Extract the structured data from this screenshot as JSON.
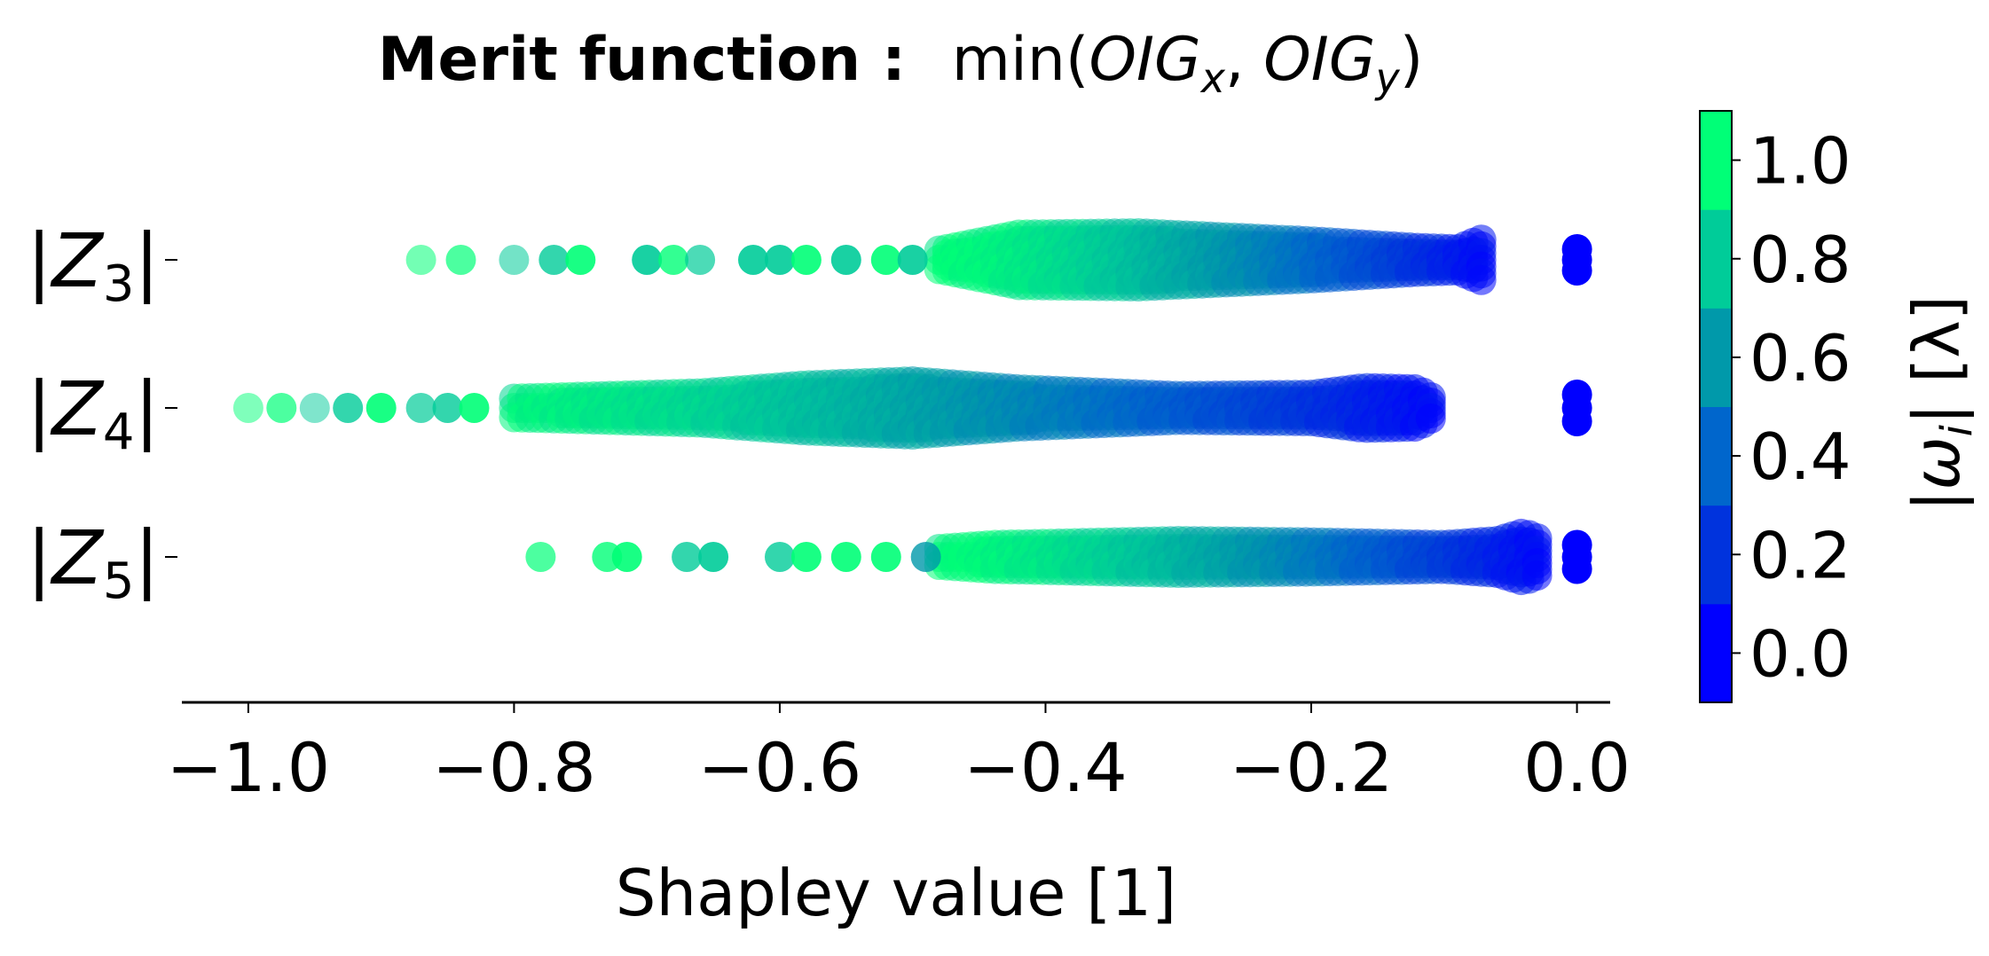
{
  "chart_data": {
    "type": "scatter",
    "subtype": "beeswarm",
    "title": {
      "bold": "Merit function :",
      "func": "min(",
      "t1": "OIG",
      "s1": "x",
      "sep": ", ",
      "t2": "OIG",
      "s2": "y",
      "close": ")"
    },
    "xlabel": "Shapley value [1]",
    "xlim": [
      -1.05,
      0.025
    ],
    "xticks": [
      -1.0,
      -0.8,
      -0.6,
      -0.4,
      -0.2,
      0.0
    ],
    "xtick_labels": [
      "−1.0",
      "−0.8",
      "−0.6",
      "−0.4",
      "−0.2",
      "0.0"
    ],
    "grid": false,
    "features": [
      {
        "label_main": "Z",
        "label_sub": "3",
        "points": [
          {
            "x": -0.87,
            "c": 0.95,
            "o": 0.55
          },
          {
            "x": -0.84,
            "c": 1.0,
            "o": 0.7
          },
          {
            "x": -0.8,
            "c": 0.8,
            "o": 0.55
          },
          {
            "x": -0.77,
            "c": 0.75,
            "o": 0.8
          },
          {
            "x": -0.75,
            "c": 1.0,
            "o": 0.9
          },
          {
            "x": -0.7,
            "c": 0.75,
            "o": 0.9
          },
          {
            "x": -0.68,
            "c": 0.95,
            "o": 0.8
          },
          {
            "x": -0.66,
            "c": 0.8,
            "o": 0.7
          },
          {
            "x": -0.62,
            "c": 0.75,
            "o": 0.9
          },
          {
            "x": -0.6,
            "c": 0.75,
            "o": 0.9
          },
          {
            "x": -0.58,
            "c": 0.95,
            "o": 0.9
          },
          {
            "x": -0.55,
            "c": 0.75,
            "o": 0.9
          },
          {
            "x": -0.52,
            "c": 0.95,
            "o": 0.9
          },
          {
            "x": -0.5,
            "c": 0.8,
            "o": 0.9
          },
          {
            "x": 0.0,
            "y": -0.4,
            "c": 0.05,
            "o": 1.0
          },
          {
            "x": 0.0,
            "y": 0.0,
            "c": 0.05,
            "o": 1.0
          },
          {
            "x": 0.0,
            "y": 0.4,
            "c": 0.05,
            "o": 1.0
          }
        ],
        "bands": [
          {
            "x0": -0.48,
            "x1": -0.07,
            "w0": 0.35,
            "w1": 0.6,
            "profile": [
              [
                -0.48,
                0.35
              ],
              [
                -0.42,
                0.95
              ],
              [
                -0.33,
                1.0
              ],
              [
                -0.2,
                0.7
              ],
              [
                -0.12,
                0.45
              ],
              [
                -0.09,
                0.4
              ],
              [
                -0.06,
                1.0
              ]
            ],
            "c0": 1.0,
            "c1": 0.05
          }
        ]
      },
      {
        "label_main": "Z",
        "label_sub": "4",
        "points": [
          {
            "x": -1.0,
            "c": 1.0,
            "o": 0.5
          },
          {
            "x": -0.975,
            "c": 1.0,
            "o": 0.7
          },
          {
            "x": -0.95,
            "c": 0.8,
            "o": 0.5
          },
          {
            "x": -0.925,
            "c": 0.75,
            "o": 0.8
          },
          {
            "x": -0.9,
            "c": 1.0,
            "o": 0.9
          },
          {
            "x": -0.87,
            "c": 0.8,
            "o": 0.7
          },
          {
            "x": -0.85,
            "c": 0.75,
            "o": 0.8
          },
          {
            "x": -0.83,
            "c": 1.0,
            "o": 0.9
          },
          {
            "x": 0.0,
            "y": -0.5,
            "c": 0.05,
            "o": 1.0
          },
          {
            "x": 0.0,
            "y": 0.0,
            "c": 0.05,
            "o": 1.0
          },
          {
            "x": 0.0,
            "y": 0.5,
            "c": 0.05,
            "o": 1.0
          }
        ],
        "bands": [
          {
            "x0": -0.8,
            "x1": -0.11,
            "profile": [
              [
                -0.8,
                0.35
              ],
              [
                -0.66,
                0.55
              ],
              [
                -0.58,
                0.85
              ],
              [
                -0.5,
                1.0
              ],
              [
                -0.42,
                0.7
              ],
              [
                -0.3,
                0.45
              ],
              [
                -0.2,
                0.5
              ],
              [
                -0.16,
                0.75
              ],
              [
                -0.12,
                0.7
              ],
              [
                -0.11,
                0.4
              ]
            ],
            "c0": 0.95,
            "c1": 0.05
          }
        ]
      },
      {
        "label_main": "Z",
        "label_sub": "5",
        "points": [
          {
            "x": -0.78,
            "c": 1.0,
            "o": 0.7
          },
          {
            "x": -0.73,
            "c": 1.0,
            "o": 0.8
          },
          {
            "x": -0.715,
            "c": 1.0,
            "o": 0.9
          },
          {
            "x": -0.67,
            "c": 0.8,
            "o": 0.8
          },
          {
            "x": -0.65,
            "c": 0.75,
            "o": 0.9
          },
          {
            "x": -0.6,
            "c": 0.75,
            "o": 0.8
          },
          {
            "x": -0.58,
            "c": 1.0,
            "o": 0.9
          },
          {
            "x": -0.55,
            "c": 1.0,
            "o": 0.9
          },
          {
            "x": -0.52,
            "c": 1.0,
            "o": 0.9
          },
          {
            "x": -0.49,
            "c": 0.55,
            "o": 0.8
          },
          {
            "x": 0.0,
            "y": -0.45,
            "c": 0.05,
            "o": 1.0
          },
          {
            "x": 0.0,
            "y": 0.0,
            "c": 0.05,
            "o": 1.0
          },
          {
            "x": 0.0,
            "y": 0.45,
            "c": 0.05,
            "o": 1.0
          }
        ],
        "bands": [
          {
            "x0": -0.48,
            "x1": -0.03,
            "profile": [
              [
                -0.48,
                0.3
              ],
              [
                -0.44,
                0.45
              ],
              [
                -0.3,
                0.6
              ],
              [
                -0.2,
                0.55
              ],
              [
                -0.1,
                0.45
              ],
              [
                -0.06,
                0.6
              ],
              [
                -0.04,
                0.9
              ],
              [
                -0.03,
                0.7
              ]
            ],
            "c0": 1.0,
            "c1": 0.05
          }
        ]
      }
    ],
    "colorbar": {
      "label_pre": "|",
      "label_sym": "ω",
      "label_sub": "i",
      "label_post": "| [λ]",
      "lim": [
        -0.1,
        1.1
      ],
      "ticks": [
        0.0,
        0.2,
        0.4,
        0.6,
        0.8,
        1.0
      ],
      "tick_labels": [
        "0.0",
        "0.2",
        "0.4",
        "0.6",
        "0.8",
        "1.0"
      ],
      "levels": [
        {
          "from": -0.1,
          "to": 0.1,
          "color": "#0000ff"
        },
        {
          "from": 0.1,
          "to": 0.3,
          "color": "#0033dd"
        },
        {
          "from": 0.3,
          "to": 0.5,
          "color": "#0066cc"
        },
        {
          "from": 0.5,
          "to": 0.7,
          "color": "#0099aa"
        },
        {
          "from": 0.7,
          "to": 0.9,
          "color": "#00cc99"
        },
        {
          "from": 0.9,
          "to": 1.1,
          "color": "#00ff77"
        }
      ]
    }
  }
}
